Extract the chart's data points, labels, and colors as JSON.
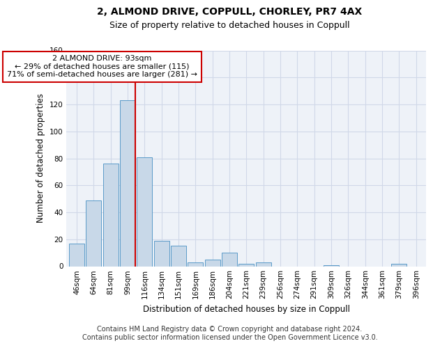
{
  "title1": "2, ALMOND DRIVE, COPPULL, CHORLEY, PR7 4AX",
  "title2": "Size of property relative to detached houses in Coppull",
  "xlabel": "Distribution of detached houses by size in Coppull",
  "ylabel": "Number of detached properties",
  "bar_labels": [
    "46sqm",
    "64sqm",
    "81sqm",
    "99sqm",
    "116sqm",
    "134sqm",
    "151sqm",
    "169sqm",
    "186sqm",
    "204sqm",
    "221sqm",
    "239sqm",
    "256sqm",
    "274sqm",
    "291sqm",
    "309sqm",
    "326sqm",
    "344sqm",
    "361sqm",
    "379sqm",
    "396sqm"
  ],
  "bar_values": [
    17,
    49,
    76,
    123,
    81,
    19,
    15,
    3,
    5,
    10,
    2,
    3,
    0,
    0,
    0,
    1,
    0,
    0,
    0,
    2,
    0
  ],
  "bar_color": "#c8d8e8",
  "bar_edge_color": "#5a9ac8",
  "vline_x": 3.45,
  "vline_color": "#cc0000",
  "annotation_text": "2 ALMOND DRIVE: 93sqm\n← 29% of detached houses are smaller (115)\n71% of semi-detached houses are larger (281) →",
  "annotation_box_color": "#ffffff",
  "annotation_box_edge": "#cc0000",
  "ylim": [
    0,
    160
  ],
  "yticks": [
    0,
    20,
    40,
    60,
    80,
    100,
    120,
    140,
    160
  ],
  "grid_color": "#d0d8e8",
  "bg_color": "#eef2f8",
  "footer": "Contains HM Land Registry data © Crown copyright and database right 2024.\nContains public sector information licensed under the Open Government Licence v3.0.",
  "title1_fontsize": 10,
  "title2_fontsize": 9,
  "xlabel_fontsize": 8.5,
  "ylabel_fontsize": 8.5,
  "tick_fontsize": 7.5,
  "footer_fontsize": 7,
  "annot_fontsize": 8
}
